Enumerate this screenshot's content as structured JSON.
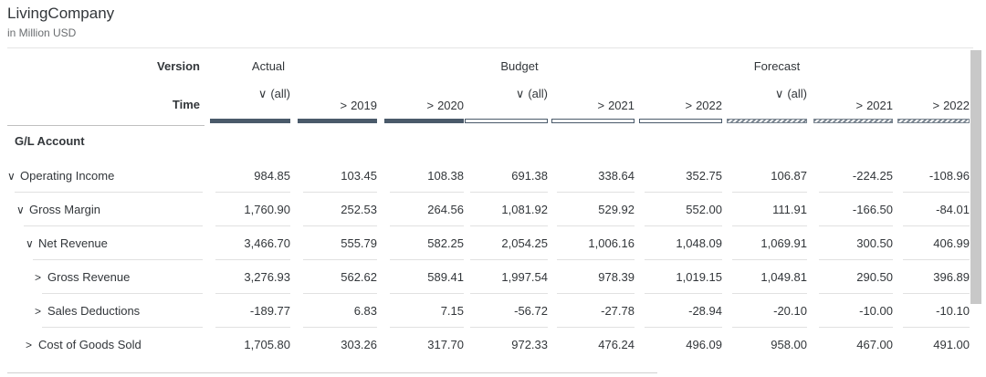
{
  "header": {
    "title": "LivingCompany",
    "subtitle": "in Million USD"
  },
  "dims": {
    "version_label": "Version",
    "time_label": "Time",
    "account_label": "G/L Account"
  },
  "versions": [
    "Actual",
    "Budget",
    "Forecast"
  ],
  "columns": [
    {
      "version": "Actual",
      "time": "(all)",
      "expand": "down"
    },
    {
      "version": "Actual",
      "time": "2019",
      "expand": "right"
    },
    {
      "version": "Actual",
      "time": "2020",
      "expand": "right"
    },
    {
      "version": "Budget",
      "time": "(all)",
      "expand": "down"
    },
    {
      "version": "Budget",
      "time": "2021",
      "expand": "right"
    },
    {
      "version": "Budget",
      "time": "2022",
      "expand": "right"
    },
    {
      "version": "Forecast",
      "time": "(all)",
      "expand": "down"
    },
    {
      "version": "Forecast",
      "time": "2021",
      "expand": "right"
    },
    {
      "version": "Forecast",
      "time": "2022",
      "expand": "right"
    }
  ],
  "rows": [
    {
      "account": "Operating Income",
      "level": 0,
      "toggle": "down",
      "values": [
        "984.85",
        "103.45",
        "108.38",
        "691.38",
        "338.64",
        "352.75",
        "106.87",
        "-224.25",
        "-108.96"
      ]
    },
    {
      "account": "Gross Margin",
      "level": 1,
      "toggle": "down",
      "values": [
        "1,760.90",
        "252.53",
        "264.56",
        "1,081.92",
        "529.92",
        "552.00",
        "111.91",
        "-166.50",
        "-84.01"
      ]
    },
    {
      "account": "Net Revenue",
      "level": 2,
      "toggle": "down",
      "values": [
        "3,466.70",
        "555.79",
        "582.25",
        "2,054.25",
        "1,006.16",
        "1,048.09",
        "1,069.91",
        "300.50",
        "406.99"
      ]
    },
    {
      "account": "Gross Revenue",
      "level": 3,
      "toggle": "right",
      "values": [
        "3,276.93",
        "562.62",
        "589.41",
        "1,997.54",
        "978.39",
        "1,019.15",
        "1,049.81",
        "290.50",
        "396.89"
      ]
    },
    {
      "account": "Sales Deductions",
      "level": 3,
      "toggle": "right",
      "values": [
        "-189.77",
        "6.83",
        "7.15",
        "-56.72",
        "-27.78",
        "-28.94",
        "-20.10",
        "-10.00",
        "-10.10"
      ]
    },
    {
      "account": "Cost of Goods Sold",
      "level": 2,
      "toggle": "right",
      "values": [
        "1,705.80",
        "303.26",
        "317.70",
        "972.33",
        "476.24",
        "496.09",
        "958.00",
        "467.00",
        "491.00"
      ]
    }
  ]
}
